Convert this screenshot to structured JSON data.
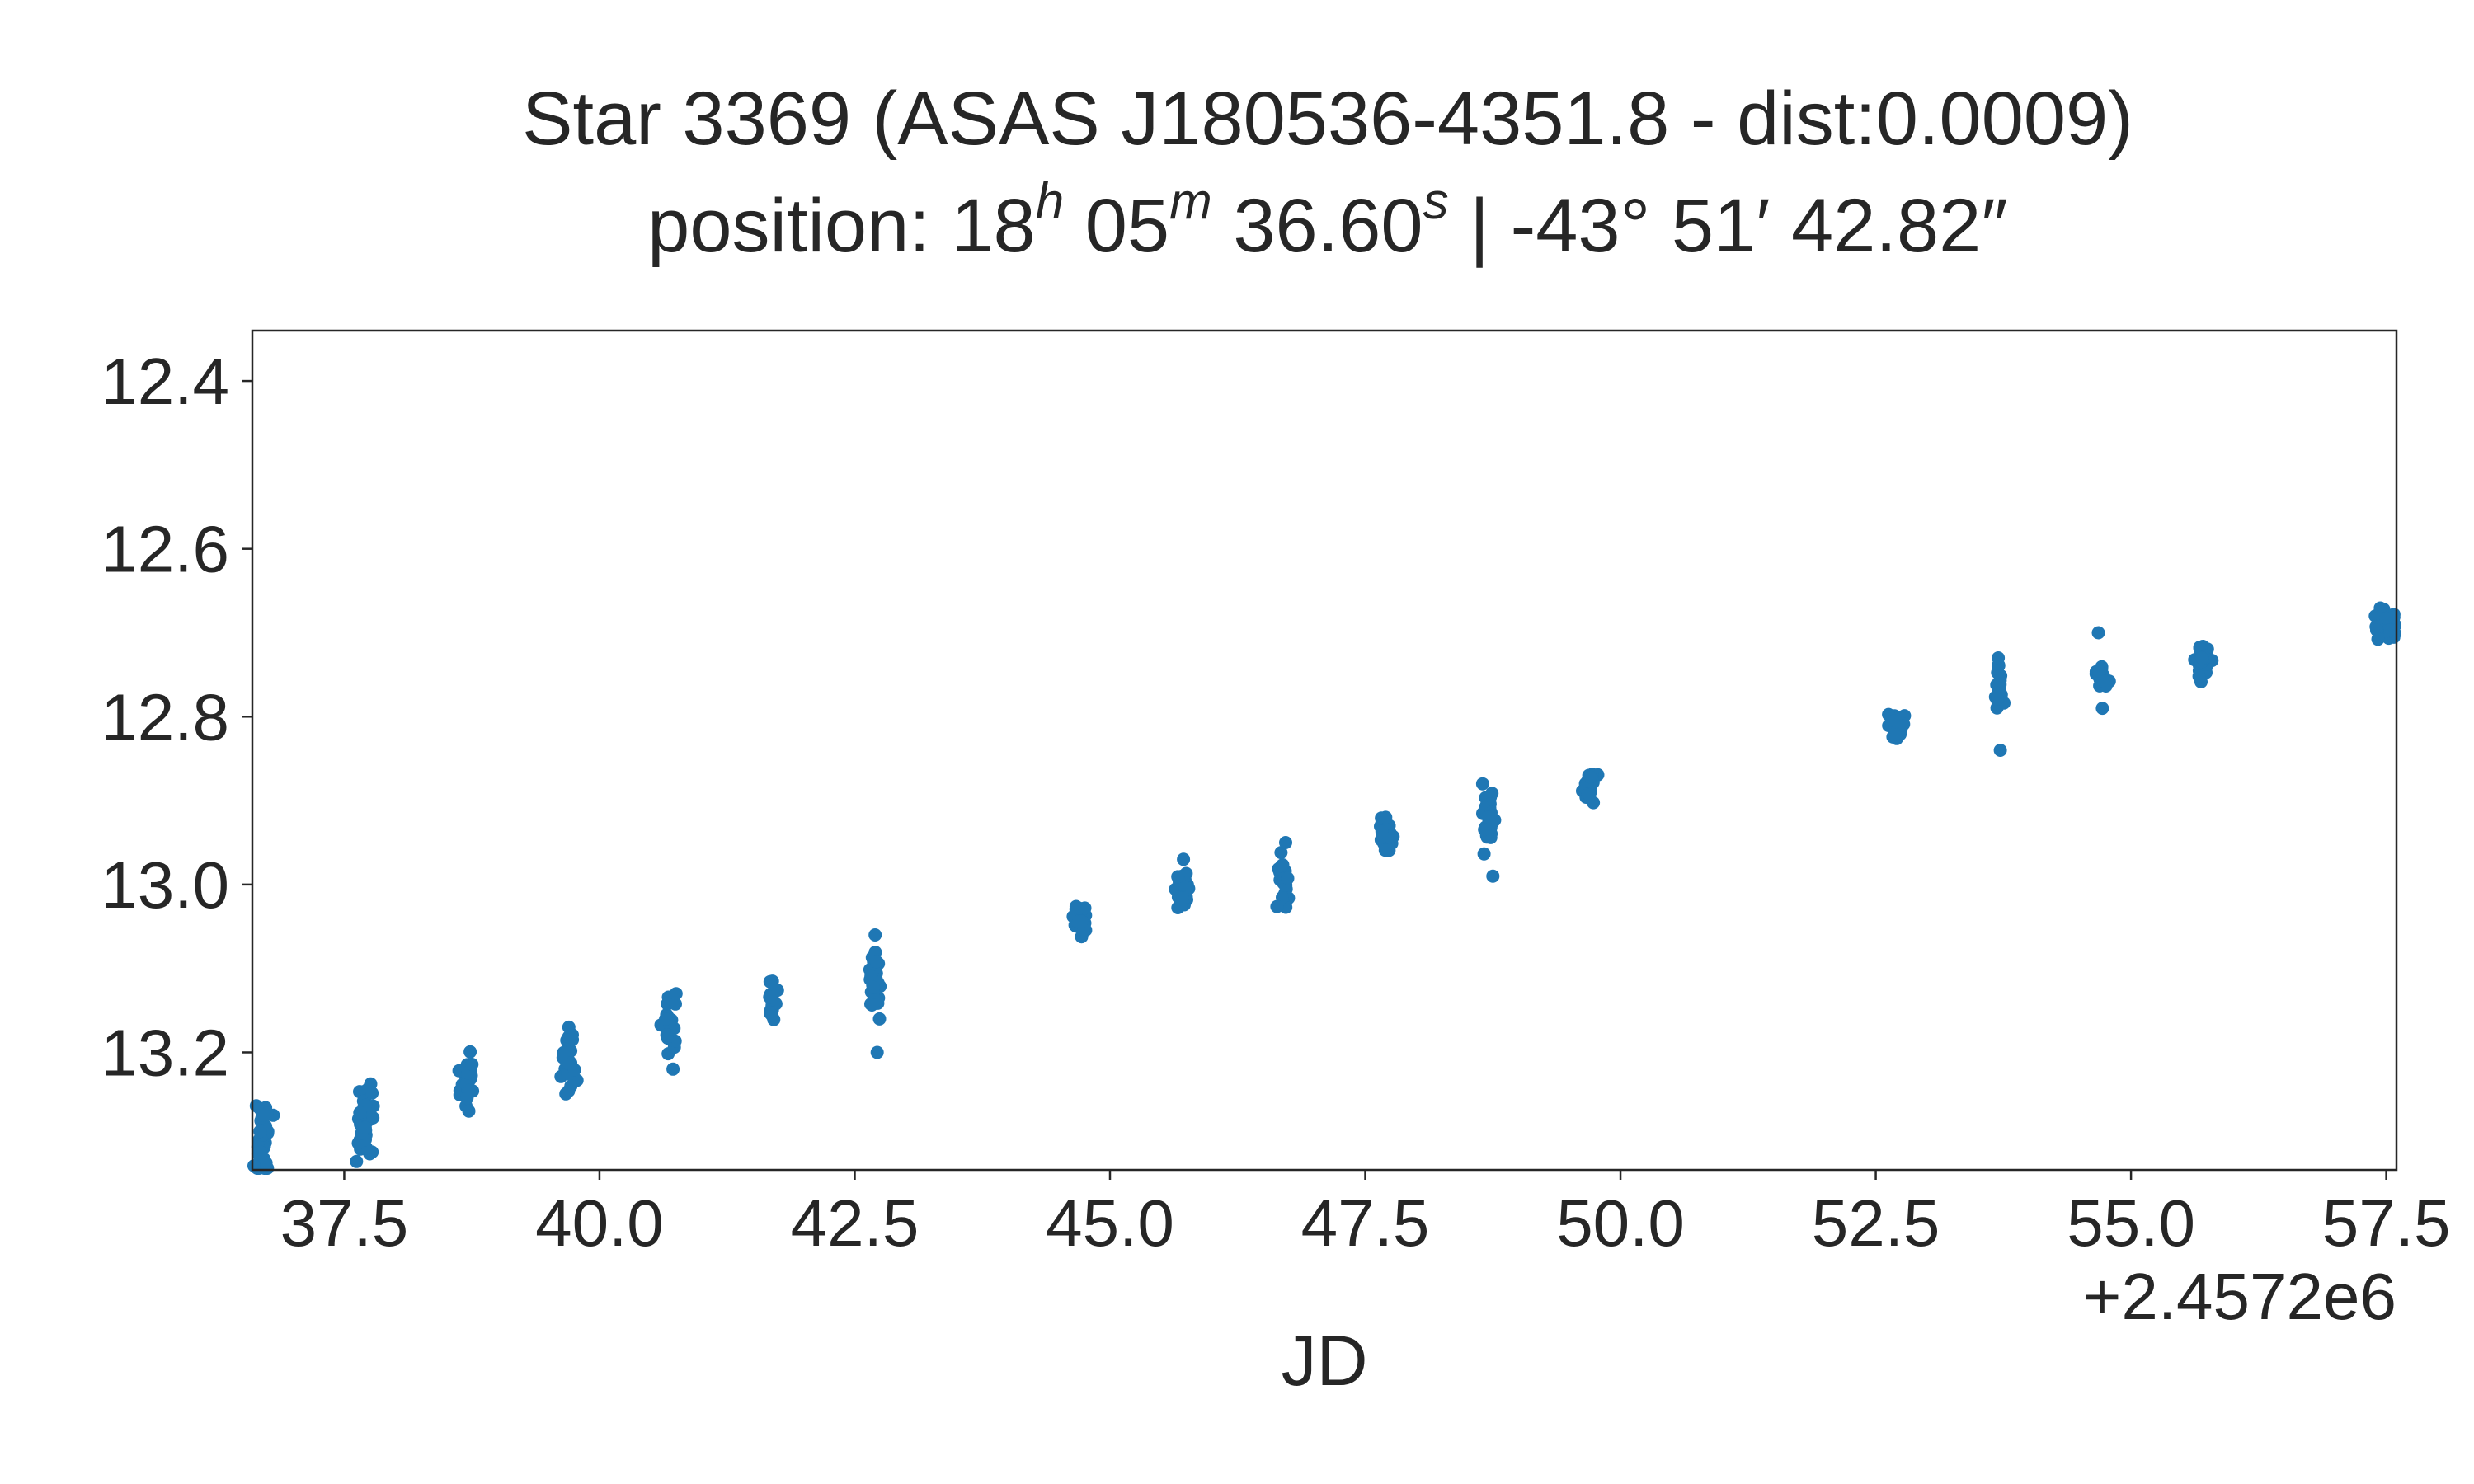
{
  "chart_data": {
    "type": "scatter",
    "title": "Star 3369 (ASAS J180536-4351.8 - dist:0.0009)",
    "subtitle": {
      "prefix": "position: 18",
      "h_sup": "h",
      "m_val": " 05",
      "m_sup": "m",
      "s_val": " 36.60",
      "s_sup": "s",
      "dec": " | -43° 51′ 42.82″"
    },
    "xlabel": "JD",
    "ylabel": "",
    "x_offset_label": "+2.4572e6",
    "xlim": [
      36.6,
      57.6
    ],
    "ylim": [
      13.34,
      12.34
    ],
    "y_inverted": true,
    "xticks": [
      37.5,
      40.0,
      42.5,
      45.0,
      47.5,
      50.0,
      52.5,
      55.0,
      57.5
    ],
    "xtick_labels": [
      "37.5",
      "40.0",
      "42.5",
      "45.0",
      "47.5",
      "50.0",
      "52.5",
      "55.0",
      "57.5"
    ],
    "yticks": [
      12.4,
      12.6,
      12.8,
      13.0,
      13.2
    ],
    "ytick_labels": [
      "12.4",
      "12.6",
      "12.8",
      "13.0",
      "13.2"
    ],
    "grid": false,
    "marker_color": "#1f77b4",
    "clusters": [
      {
        "x": 36.7,
        "y": 13.3,
        "spread_x": 0.08,
        "spread_y": 0.03,
        "n": 40
      },
      {
        "x": 37.7,
        "y": 13.28,
        "spread_x": 0.06,
        "spread_y": 0.025,
        "n": 34
      },
      {
        "x": 38.7,
        "y": 13.23,
        "spread_x": 0.06,
        "spread_y": 0.02,
        "n": 26
      },
      {
        "x": 39.7,
        "y": 13.21,
        "spread_x": 0.05,
        "spread_y": 0.025,
        "n": 26
      },
      {
        "x": 40.7,
        "y": 13.17,
        "spread_x": 0.05,
        "spread_y": 0.025,
        "n": 22
      },
      {
        "x": 41.7,
        "y": 13.14,
        "spread_x": 0.05,
        "spread_y": 0.015,
        "n": 20
      },
      {
        "x": 42.7,
        "y": 13.12,
        "spread_x": 0.05,
        "spread_y": 0.025,
        "n": 30
      },
      {
        "x": 44.7,
        "y": 13.04,
        "spread_x": 0.05,
        "spread_y": 0.015,
        "n": 28
      },
      {
        "x": 45.7,
        "y": 13.01,
        "spread_x": 0.05,
        "spread_y": 0.015,
        "n": 30
      },
      {
        "x": 46.7,
        "y": 13.0,
        "spread_x": 0.04,
        "spread_y": 0.02,
        "n": 24
      },
      {
        "x": 47.7,
        "y": 12.94,
        "spread_x": 0.05,
        "spread_y": 0.012,
        "n": 28
      },
      {
        "x": 48.7,
        "y": 12.92,
        "spread_x": 0.05,
        "spread_y": 0.02,
        "n": 30
      },
      {
        "x": 49.7,
        "y": 12.88,
        "spread_x": 0.05,
        "spread_y": 0.012,
        "n": 30
      },
      {
        "x": 52.7,
        "y": 12.81,
        "spread_x": 0.05,
        "spread_y": 0.012,
        "n": 24
      },
      {
        "x": 53.7,
        "y": 12.77,
        "spread_x": 0.04,
        "spread_y": 0.015,
        "n": 20
      },
      {
        "x": 54.7,
        "y": 12.75,
        "spread_x": 0.05,
        "spread_y": 0.01,
        "n": 22
      },
      {
        "x": 55.7,
        "y": 12.73,
        "spread_x": 0.06,
        "spread_y": 0.012,
        "n": 40
      },
      {
        "x": 57.5,
        "y": 12.69,
        "spread_x": 0.08,
        "spread_y": 0.01,
        "n": 40
      }
    ],
    "outliers": [
      {
        "x": 42.72,
        "y": 13.2
      },
      {
        "x": 42.7,
        "y": 13.06
      },
      {
        "x": 48.75,
        "y": 12.99
      },
      {
        "x": 48.65,
        "y": 12.88
      },
      {
        "x": 53.72,
        "y": 12.84
      },
      {
        "x": 53.7,
        "y": 12.73
      },
      {
        "x": 54.72,
        "y": 12.79
      },
      {
        "x": 54.68,
        "y": 12.7
      },
      {
        "x": 47.7,
        "y": 12.92
      },
      {
        "x": 46.72,
        "y": 12.95
      },
      {
        "x": 45.72,
        "y": 12.97
      },
      {
        "x": 40.72,
        "y": 13.22
      },
      {
        "x": 40.75,
        "y": 13.13
      },
      {
        "x": 39.72,
        "y": 13.24
      },
      {
        "x": 39.7,
        "y": 13.17
      },
      {
        "x": 38.72,
        "y": 13.27
      },
      {
        "x": 37.62,
        "y": 13.33
      }
    ]
  }
}
